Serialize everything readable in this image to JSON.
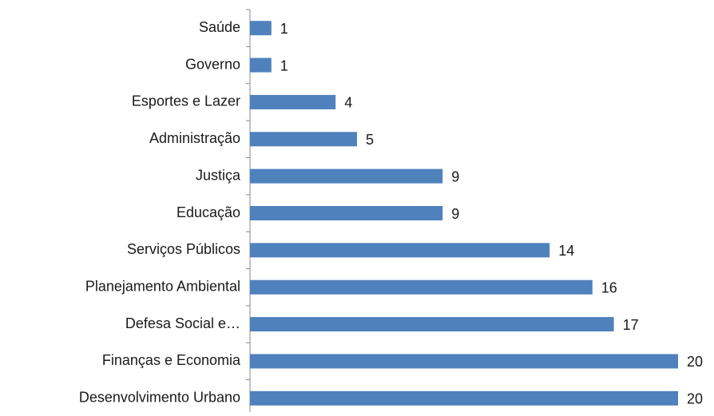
{
  "chart_data": {
    "type": "bar",
    "orientation": "horizontal",
    "categories": [
      "Saúde",
      "Governo",
      "Esportes e Lazer",
      "Administração",
      "Justiça",
      "Educação",
      "Serviços Públicos",
      "Planejamento Ambiental",
      "Defesa Social e…",
      "Finanças e Economia",
      "Desenvolvimento Urbano"
    ],
    "values": [
      1,
      1,
      4,
      5,
      9,
      9,
      14,
      16,
      17,
      20,
      20
    ],
    "color": "#4f81bd"
  }
}
